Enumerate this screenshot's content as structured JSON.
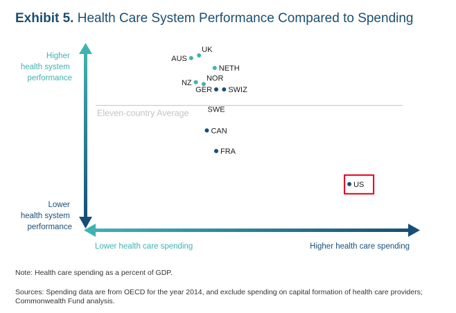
{
  "title": {
    "exhibit": "Exhibit 5.",
    "text": "Health Care System Performance Compared to Spending"
  },
  "colors": {
    "title": "#1b4f72",
    "teal": "#3fb3b1",
    "navy": "#174e78",
    "highlight": "#e3001b",
    "average_line": "#c8c8c8"
  },
  "chart_data": {
    "type": "scatter",
    "title": "Health Care System Performance Compared to Spending",
    "xlabel_low": "Lower health care spending",
    "xlabel_high": "Higher health care spending",
    "ylabel_high": [
      "Higher",
      "health system",
      "performance"
    ],
    "ylabel_low": [
      "Lower",
      "health system",
      "performance"
    ],
    "xlim": [
      0,
      100
    ],
    "ylim": [
      0,
      100
    ],
    "average_label": "Eleven-country Average",
    "average_y": 65,
    "highlight": "US",
    "points": [
      {
        "label": "UK",
        "x": 33,
        "y": 93,
        "color": "#3fb3b1",
        "label_side": "above-right"
      },
      {
        "label": "AUS",
        "x": 30.5,
        "y": 91.5,
        "color": "#3fb3b1",
        "label_side": "left"
      },
      {
        "label": "NETH",
        "x": 38,
        "y": 86,
        "color": "#3fb3b1",
        "label_side": "right"
      },
      {
        "label": "NOR",
        "x": 34.5,
        "y": 77,
        "color": "#3fb3b1",
        "label_side": "above-right"
      },
      {
        "label": "NZ",
        "x": 32,
        "y": 78,
        "color": "#3fb3b1",
        "label_side": "left"
      },
      {
        "label": "GER",
        "x": 38.5,
        "y": 74,
        "color": "#174e78",
        "label_side": "left"
      },
      {
        "label": "SWIZ",
        "x": 41,
        "y": 74,
        "color": "#174e78",
        "label_side": "right"
      },
      {
        "label": "SWE",
        "x": 38.5,
        "y": 63,
        "color": "#174e78",
        "label_side": "label-only"
      },
      {
        "label": "CAN",
        "x": 35.5,
        "y": 51,
        "color": "#174e78",
        "label_side": "right"
      },
      {
        "label": "FRA",
        "x": 38.5,
        "y": 39.5,
        "color": "#174e78",
        "label_side": "right"
      },
      {
        "label": "US",
        "x": 81,
        "y": 21,
        "color": "#174e78",
        "label_side": "right"
      }
    ]
  },
  "notes": {
    "note": "Note: Health care spending as a percent of GDP.",
    "sources_line1": "Sources: Spending data are from OECD for the year 2014, and exclude spending on capital formation of health care providers;",
    "sources_line2": "Commonwealth Fund analysis."
  }
}
